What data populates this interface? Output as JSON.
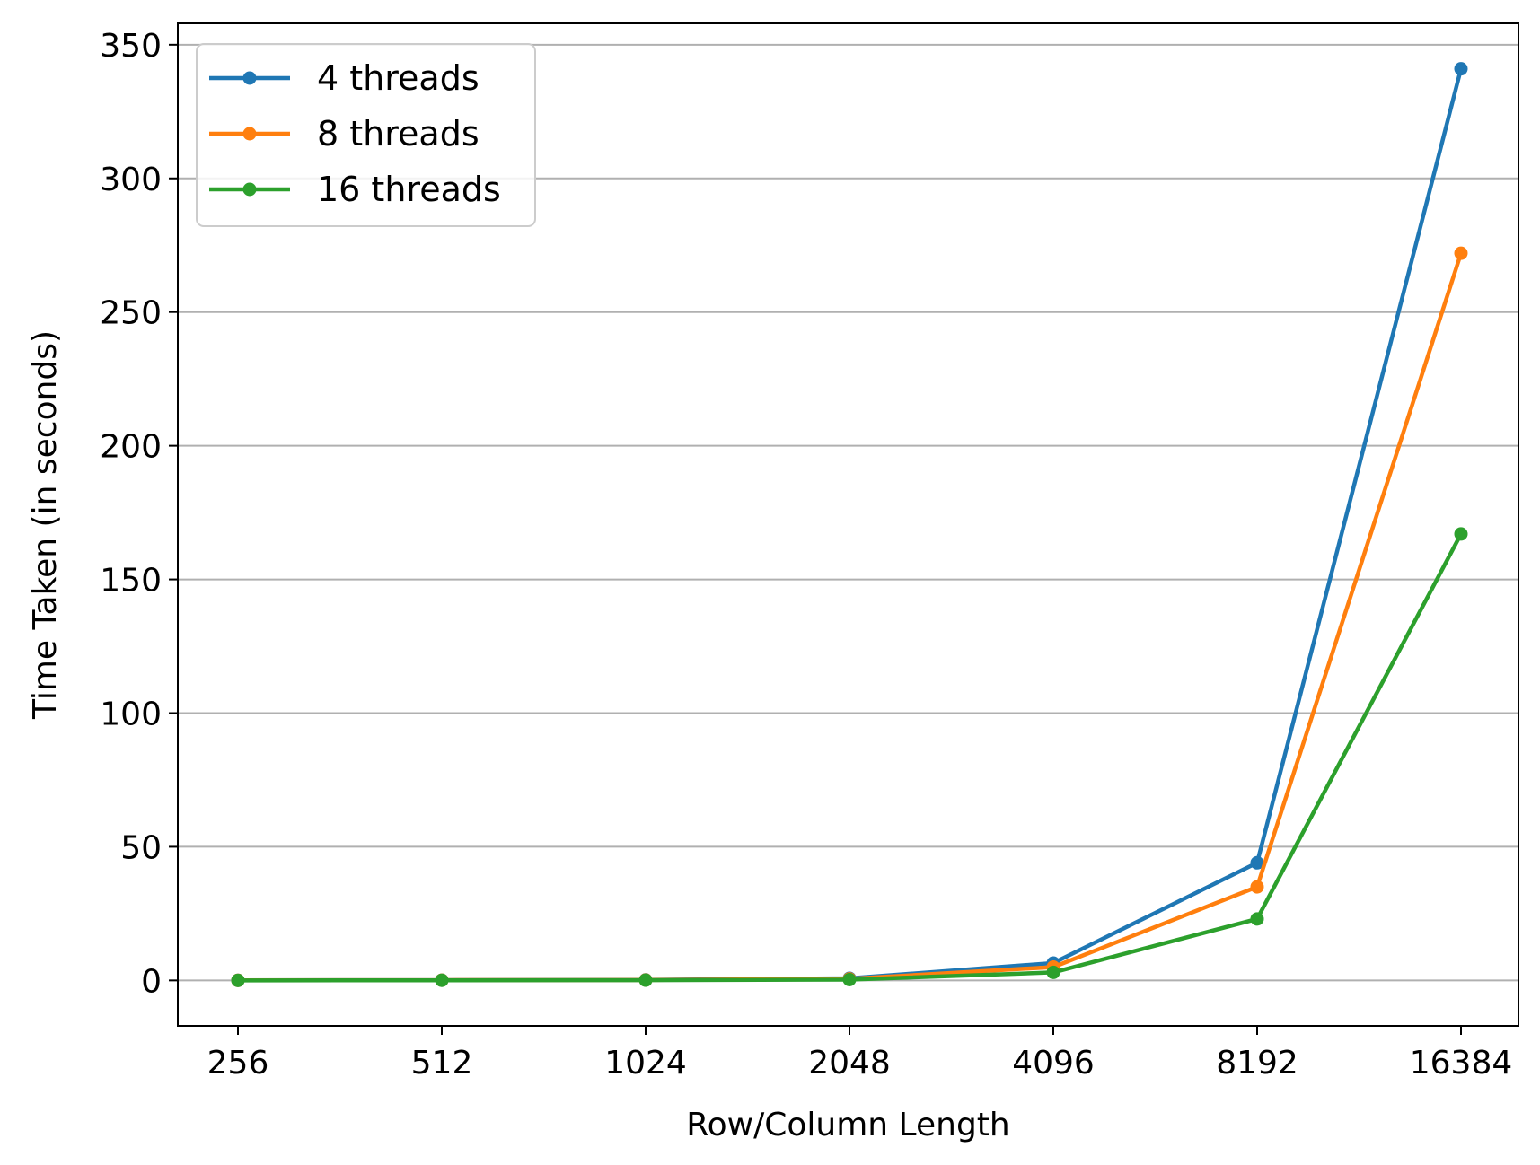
{
  "chart_data": {
    "type": "line",
    "x": [
      "256",
      "512",
      "1024",
      "2048",
      "4096",
      "8192",
      "16384"
    ],
    "xlabel": "Row/Column Length",
    "ylabel": "Time Taken (in seconds)",
    "ylim": [
      -17,
      358
    ],
    "yticks": [
      0,
      50,
      100,
      150,
      200,
      250,
      300,
      350
    ],
    "grid": "y",
    "legend_position": "top-left",
    "series": [
      {
        "name": "4 threads",
        "color": "#1f77b4",
        "values": [
          0.02,
          0.1,
          0.2,
          0.8,
          6.5,
          44,
          341
        ]
      },
      {
        "name": "8 threads",
        "color": "#ff7f0e",
        "values": [
          0.02,
          0.1,
          0.15,
          0.6,
          5,
          35,
          272
        ]
      },
      {
        "name": "16 threads",
        "color": "#2ca02c",
        "values": [
          0.01,
          0.05,
          0.1,
          0.3,
          3,
          23,
          167
        ]
      }
    ]
  }
}
